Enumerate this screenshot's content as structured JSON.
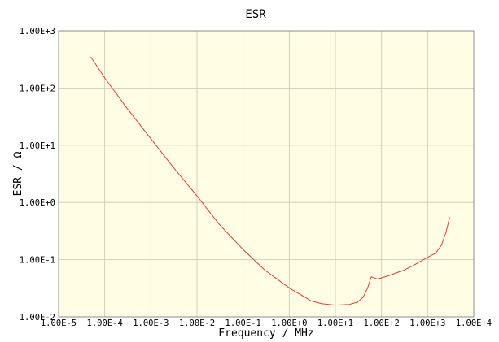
{
  "chart_data": {
    "type": "line",
    "title": "ESR",
    "xlabel": "Frequency / MHz",
    "ylabel": "ESR / Ω",
    "x_scale": "log",
    "y_scale": "log",
    "xlim": [
      1e-05,
      10000
    ],
    "ylim": [
      0.01,
      1000
    ],
    "x_ticks": [
      {
        "value": 1e-05,
        "label": "1.00E-5"
      },
      {
        "value": 0.0001,
        "label": "1.00E-4"
      },
      {
        "value": 0.001,
        "label": "1.00E-3"
      },
      {
        "value": 0.01,
        "label": "1.00E-2"
      },
      {
        "value": 0.1,
        "label": "1.00E-1"
      },
      {
        "value": 1,
        "label": "1.00E+0"
      },
      {
        "value": 10,
        "label": "1.00E+1"
      },
      {
        "value": 100,
        "label": "1.00E+2"
      },
      {
        "value": 1000,
        "label": "1.00E+3"
      },
      {
        "value": 10000,
        "label": "1.00E+4"
      }
    ],
    "y_ticks": [
      {
        "value": 0.01,
        "label": "1.00E-2"
      },
      {
        "value": 0.1,
        "label": "1.00E-1"
      },
      {
        "value": 1,
        "label": "1.00E+0"
      },
      {
        "value": 10,
        "label": "1.00E+1"
      },
      {
        "value": 100,
        "label": "1.00E+2"
      },
      {
        "value": 1000,
        "label": "1.00E+3"
      }
    ],
    "grid": true,
    "colors": {
      "plot_background": "#fffde3",
      "grid": "#c8c8b0",
      "line": "#e23a3a"
    },
    "series": [
      {
        "x": [
          5e-05,
          0.0001,
          0.0003,
          0.001,
          0.003,
          0.01,
          0.03,
          0.1,
          0.3,
          1,
          2,
          3,
          5,
          10,
          20,
          30,
          40,
          50,
          60,
          70,
          80,
          100,
          150,
          200,
          300,
          500,
          1000,
          1500,
          2000,
          2500,
          3000
        ],
        "y": [
          350,
          150,
          45,
          13,
          4.2,
          1.3,
          0.42,
          0.15,
          0.065,
          0.032,
          0.023,
          0.019,
          0.017,
          0.016,
          0.0165,
          0.018,
          0.022,
          0.032,
          0.05,
          0.048,
          0.046,
          0.048,
          0.053,
          0.058,
          0.065,
          0.08,
          0.11,
          0.13,
          0.18,
          0.3,
          0.55
        ]
      }
    ]
  }
}
